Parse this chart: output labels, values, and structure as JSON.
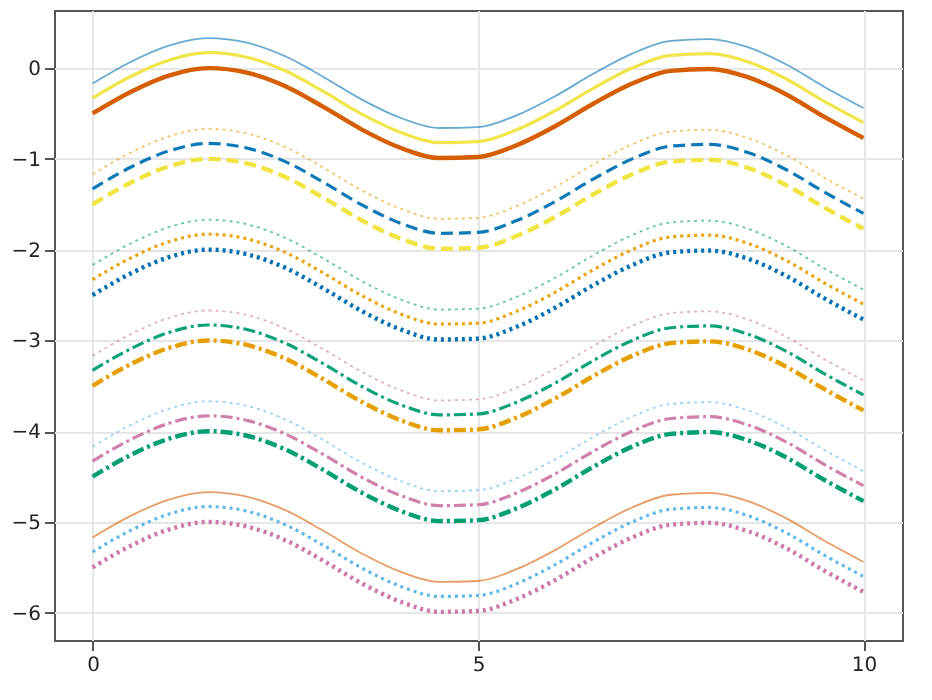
{
  "chart_data": {
    "type": "line",
    "x": [
      0,
      0.5,
      1,
      1.5,
      2,
      2.5,
      3,
      3.5,
      4,
      4.5,
      5,
      5.5,
      6,
      6.5,
      7,
      7.5,
      8,
      8.5,
      9,
      9.5,
      10
    ],
    "xlim": [
      -0.5,
      10.5
    ],
    "xticks": [
      0,
      5,
      10
    ],
    "ylim": [
      -6.3,
      0.64
    ],
    "yticks": [
      0,
      -1,
      -2,
      -3,
      -4,
      -5,
      -6
    ],
    "grid": true,
    "marker": "none",
    "series": [
      {
        "color": "#d55e00",
        "line_style": "solid",
        "values": [
          -0.5,
          -0.26,
          -0.08,
          0,
          -0.05,
          -0.2,
          -0.43,
          -0.68,
          -0.88,
          -0.99,
          -0.98,
          -0.85,
          -0.64,
          -0.39,
          -0.17,
          -0.03,
          -0.01,
          -0.1,
          -0.29,
          -0.54,
          -0.77
        ]
      },
      {
        "color": "#f0e442",
        "line_style": "solid",
        "values": [
          -0.33,
          -0.09,
          0.09,
          0.17,
          0.12,
          -0.03,
          -0.26,
          -0.51,
          -0.71,
          -0.82,
          -0.81,
          -0.68,
          -0.47,
          -0.22,
          0,
          0.14,
          0.16,
          0.07,
          -0.12,
          -0.37,
          -0.6
        ]
      },
      {
        "color": "#0072b2",
        "line_style": "solid",
        "values": [
          -0.17,
          0.07,
          0.25,
          0.33,
          0.28,
          0.13,
          -0.1,
          -0.35,
          -0.55,
          -0.66,
          -0.65,
          -0.52,
          -0.31,
          -0.06,
          0.16,
          0.3,
          0.32,
          0.23,
          0.04,
          -0.21,
          -0.44
        ]
      },
      {
        "color": "#f0e442",
        "line_style": "dashed",
        "values": [
          -1.5,
          -1.26,
          -1.08,
          -1,
          -1.05,
          -1.2,
          -1.43,
          -1.68,
          -1.88,
          -1.99,
          -1.98,
          -1.85,
          -1.64,
          -1.39,
          -1.17,
          -1.03,
          -1.01,
          -1.1,
          -1.29,
          -1.54,
          -1.77
        ]
      },
      {
        "color": "#0072b2",
        "line_style": "dashed",
        "values": [
          -1.33,
          -1.09,
          -0.91,
          -0.83,
          -0.88,
          -1.03,
          -1.26,
          -1.51,
          -1.71,
          -1.82,
          -1.81,
          -1.68,
          -1.47,
          -1.22,
          -1,
          -0.86,
          -0.84,
          -0.93,
          -1.12,
          -1.37,
          -1.6
        ]
      },
      {
        "color": "#e69f00",
        "line_style": "dotted",
        "values": [
          -1.17,
          -0.93,
          -0.75,
          -0.67,
          -0.72,
          -0.87,
          -1.1,
          -1.35,
          -1.55,
          -1.66,
          -1.65,
          -1.52,
          -1.31,
          -1.06,
          -0.84,
          -0.7,
          -0.68,
          -0.77,
          -0.96,
          -1.21,
          -1.44
        ]
      },
      {
        "color": "#0072b2",
        "line_style": "dotted",
        "values": [
          -2.5,
          -2.26,
          -2.08,
          -2,
          -2.05,
          -2.2,
          -2.43,
          -2.68,
          -2.88,
          -2.99,
          -2.98,
          -2.85,
          -2.64,
          -2.39,
          -2.17,
          -2.03,
          -2.01,
          -2.1,
          -2.29,
          -2.54,
          -2.77
        ]
      },
      {
        "color": "#e69f00",
        "line_style": "dotted",
        "values": [
          -2.33,
          -2.09,
          -1.91,
          -1.83,
          -1.88,
          -2.03,
          -2.26,
          -2.51,
          -2.71,
          -2.82,
          -2.81,
          -2.68,
          -2.47,
          -2.22,
          -2,
          -1.86,
          -1.84,
          -1.93,
          -2.12,
          -2.37,
          -2.6
        ]
      },
      {
        "color": "#009e73",
        "line_style": "dotted",
        "values": [
          -2.17,
          -1.93,
          -1.75,
          -1.67,
          -1.72,
          -1.87,
          -2.1,
          -2.35,
          -2.55,
          -2.66,
          -2.65,
          -2.52,
          -2.31,
          -2.06,
          -1.84,
          -1.7,
          -1.68,
          -1.77,
          -1.96,
          -2.21,
          -2.44
        ]
      },
      {
        "color": "#e69f00",
        "line_style": "dashdot",
        "values": [
          -3.5,
          -3.26,
          -3.08,
          -3,
          -3.05,
          -3.2,
          -3.43,
          -3.68,
          -3.88,
          -3.99,
          -3.98,
          -3.85,
          -3.64,
          -3.39,
          -3.17,
          -3.03,
          -3.01,
          -3.1,
          -3.29,
          -3.54,
          -3.77
        ]
      },
      {
        "color": "#009e73",
        "line_style": "dashdot",
        "values": [
          -3.33,
          -3.09,
          -2.91,
          -2.83,
          -2.88,
          -3.03,
          -3.26,
          -3.51,
          -3.71,
          -3.82,
          -3.81,
          -3.68,
          -3.47,
          -3.22,
          -3,
          -2.86,
          -2.84,
          -2.93,
          -3.12,
          -3.37,
          -3.6
        ]
      },
      {
        "color": "#cc79a7",
        "line_style": "dotted",
        "values": [
          -3.17,
          -2.93,
          -2.75,
          -2.67,
          -2.72,
          -2.87,
          -3.1,
          -3.35,
          -3.55,
          -3.66,
          -3.65,
          -3.52,
          -3.31,
          -3.06,
          -2.84,
          -2.7,
          -2.68,
          -2.77,
          -2.96,
          -3.21,
          -3.44
        ]
      },
      {
        "color": "#009e73",
        "line_style": "dashdot",
        "values": [
          -4.5,
          -4.26,
          -4.08,
          -4,
          -4.05,
          -4.2,
          -4.43,
          -4.68,
          -4.88,
          -4.99,
          -4.98,
          -4.85,
          -4.64,
          -4.39,
          -4.17,
          -4.03,
          -4.01,
          -4.1,
          -4.29,
          -4.54,
          -4.77
        ]
      },
      {
        "color": "#cc79a7",
        "line_style": "dashdot",
        "values": [
          -4.33,
          -4.09,
          -3.91,
          -3.83,
          -3.88,
          -4.03,
          -4.26,
          -4.51,
          -4.71,
          -4.82,
          -4.81,
          -4.68,
          -4.47,
          -4.22,
          -4,
          -3.86,
          -3.84,
          -3.93,
          -4.12,
          -4.37,
          -4.6
        ]
      },
      {
        "color": "#56b4e9",
        "line_style": "dotted",
        "values": [
          -4.17,
          -3.93,
          -3.75,
          -3.67,
          -3.72,
          -3.87,
          -4.1,
          -4.35,
          -4.55,
          -4.66,
          -4.65,
          -4.52,
          -4.31,
          -4.06,
          -3.84,
          -3.7,
          -3.68,
          -3.77,
          -3.96,
          -4.21,
          -4.44
        ]
      },
      {
        "color": "#cc79a7",
        "line_style": "dotted",
        "values": [
          -5.5,
          -5.26,
          -5.08,
          -5,
          -5.05,
          -5.2,
          -5.43,
          -5.68,
          -5.88,
          -5.99,
          -5.98,
          -5.85,
          -5.64,
          -5.39,
          -5.17,
          -5.03,
          -5.01,
          -5.1,
          -5.29,
          -5.54,
          -5.77
        ]
      },
      {
        "color": "#56b4e9",
        "line_style": "dotted",
        "values": [
          -5.33,
          -5.09,
          -4.91,
          -4.83,
          -4.88,
          -5.03,
          -5.26,
          -5.51,
          -5.71,
          -5.82,
          -5.81,
          -5.68,
          -5.47,
          -5.22,
          -5,
          -4.86,
          -4.84,
          -4.93,
          -5.12,
          -5.37,
          -5.6
        ]
      },
      {
        "color": "#d55e00",
        "line_style": "solid",
        "values": [
          -5.17,
          -4.93,
          -4.75,
          -4.67,
          -4.72,
          -4.87,
          -5.1,
          -5.35,
          -5.55,
          -5.66,
          -5.65,
          -5.52,
          -5.31,
          -5.06,
          -4.84,
          -4.7,
          -4.68,
          -4.77,
          -4.96,
          -5.21,
          -5.44
        ]
      }
    ]
  }
}
